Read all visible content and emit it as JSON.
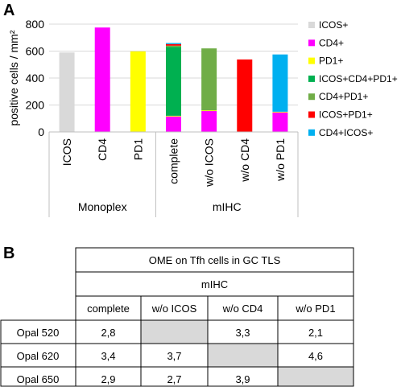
{
  "panel_a_label": "A",
  "panel_b_label": "B",
  "chart_data": {
    "type": "bar",
    "stacked": true,
    "ylabel": "positive cells / mm²",
    "ylim": [
      0,
      800
    ],
    "yticks": [
      0,
      200,
      400,
      600,
      800
    ],
    "grid": true,
    "legend_position": "right",
    "categories": [
      "ICOS",
      "CD4",
      "PD1",
      "complete",
      "w/o ICOS",
      "w/o CD4",
      "w/o PD1"
    ],
    "groups": [
      {
        "label": "Monoplex",
        "categories": [
          "ICOS",
          "CD4",
          "PD1"
        ]
      },
      {
        "label": "mIHC",
        "categories": [
          "complete",
          "w/o ICOS",
          "w/o CD4",
          "w/o PD1"
        ]
      }
    ],
    "series": [
      {
        "name": "ICOS+",
        "color": "#d9d9d9",
        "values": [
          590,
          0,
          0,
          0,
          0,
          0,
          0
        ]
      },
      {
        "name": "CD4+",
        "color": "#ff00ff",
        "values": [
          0,
          775,
          0,
          115,
          155,
          0,
          145
        ]
      },
      {
        "name": "PD1+",
        "color": "#ffff00",
        "values": [
          0,
          0,
          598,
          5,
          5,
          0,
          5
        ]
      },
      {
        "name": "ICOS+CD4+PD1+",
        "color": "#00b050",
        "values": [
          0,
          0,
          0,
          510,
          0,
          0,
          0
        ]
      },
      {
        "name": "CD4+PD1+",
        "color": "#70ad47",
        "values": [
          0,
          0,
          0,
          10,
          460,
          0,
          0
        ]
      },
      {
        "name": "ICOS+PD1+",
        "color": "#ff0000",
        "values": [
          0,
          0,
          0,
          12,
          0,
          538,
          0
        ]
      },
      {
        "name": "CD4+ICOS+",
        "color": "#00b0f0",
        "values": [
          0,
          0,
          0,
          8,
          0,
          0,
          425
        ]
      }
    ]
  },
  "table": {
    "title": "OME on Tfh cells in GC TLS",
    "subtitle": "mIHC",
    "columns": [
      "complete",
      "w/o ICOS",
      "w/o CD4",
      "w/o PD1"
    ],
    "rows": [
      {
        "label": "Opal 520",
        "cells": [
          "2,8",
          "",
          "3,3",
          "2,1"
        ]
      },
      {
        "label": "Opal 620",
        "cells": [
          "3,4",
          "3,7",
          "",
          "4,6"
        ]
      },
      {
        "label": "Opal 650",
        "cells": [
          "2,9",
          "2,7",
          "3,9",
          ""
        ]
      }
    ],
    "empty_cell_color": "#d9d9d9"
  }
}
